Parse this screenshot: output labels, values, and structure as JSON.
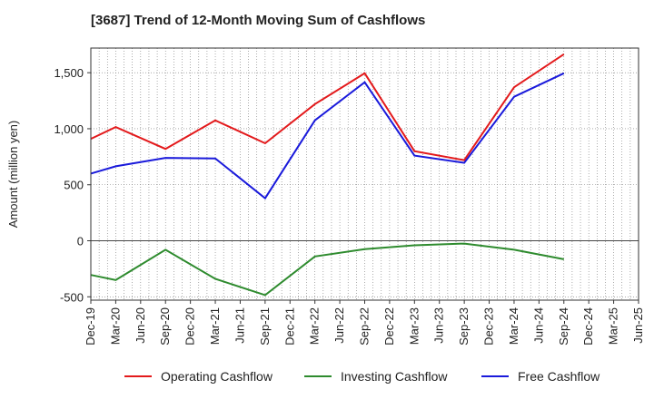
{
  "chart_data": {
    "type": "line",
    "title": "[3687]  Trend of 12-Month Moving Sum of Cashflows",
    "ylabel": "Amount (million yen)",
    "xlabel": "",
    "categories": [
      "Dec-19",
      "Mar-20",
      "Jun-20",
      "Sep-20",
      "Dec-20",
      "Mar-21",
      "Jun-21",
      "Sep-21",
      "Dec-21",
      "Mar-22",
      "Jun-22",
      "Sep-22",
      "Dec-22",
      "Mar-23",
      "Jun-23",
      "Sep-23",
      "Dec-23",
      "Mar-24",
      "Jun-24",
      "Sep-24",
      "Dec-24",
      "Mar-25"
    ],
    "x_ticks": [
      "Dec-19",
      "Mar-20",
      "Jun-20",
      "Sep-20",
      "Dec-20",
      "Mar-21",
      "Jun-21",
      "Sep-21",
      "Dec-21",
      "Mar-22",
      "Jun-22",
      "Sep-22",
      "Dec-22",
      "Mar-23",
      "Jun-23",
      "Sep-23",
      "Dec-23",
      "Mar-24",
      "Jun-24",
      "Sep-24",
      "Dec-24",
      "Mar-25",
      "Jun-25"
    ],
    "y_ticks": [
      {
        "value": 1500,
        "label": "1,500"
      },
      {
        "value": 1000,
        "label": "1,000"
      },
      {
        "value": 500,
        "label": "500"
      },
      {
        "value": 0,
        "label": "0"
      },
      {
        "value": -500,
        "label": "-500"
      }
    ],
    "ylim": [
      -530,
      1720
    ],
    "grid": true,
    "legend_position": "bottom",
    "series": [
      {
        "name": "Operating Cashflow",
        "color": "#e31a1c",
        "values": [
          910,
          1015,
          null,
          820,
          null,
          1075,
          null,
          870,
          null,
          1220,
          null,
          1495,
          null,
          800,
          null,
          720,
          null,
          1370,
          null,
          1665,
          null,
          null
        ]
      },
      {
        "name": "Investing Cashflow",
        "color": "#2e8b2e",
        "values": [
          -305,
          -350,
          null,
          -80,
          null,
          -340,
          null,
          -485,
          null,
          -140,
          null,
          -75,
          null,
          -40,
          null,
          -25,
          null,
          -80,
          null,
          -165,
          null,
          null
        ]
      },
      {
        "name": "Free Cashflow",
        "color": "#1a1adb",
        "values": [
          600,
          665,
          null,
          740,
          null,
          735,
          null,
          380,
          null,
          1075,
          null,
          1415,
          null,
          760,
          null,
          695,
          null,
          1285,
          null,
          1495,
          null,
          null
        ]
      }
    ]
  }
}
